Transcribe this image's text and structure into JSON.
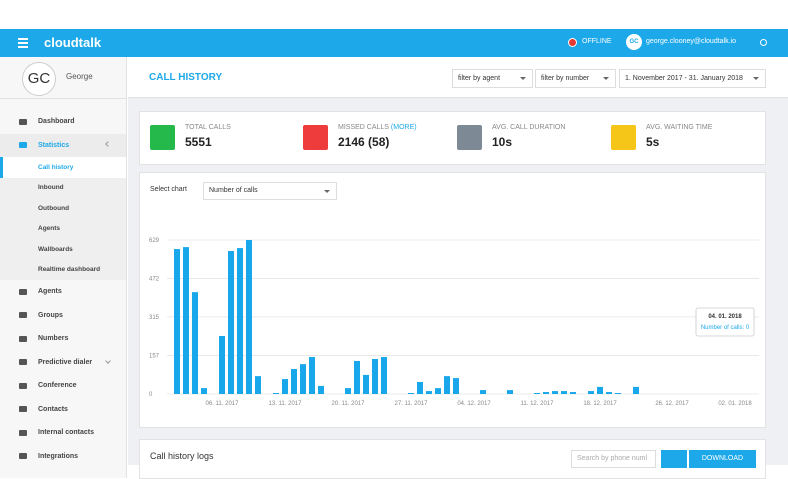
{
  "topbar": {
    "logo": "cloudtalk",
    "status": "OFFLINE",
    "user_initials": "GC",
    "user_email": "george.clooney@cloudtalk.io"
  },
  "sidebar": {
    "initials": "GC",
    "name": "George",
    "menu": [
      {
        "label": "Dashboard",
        "sub": false
      },
      {
        "label": "Statistics",
        "sub": false,
        "open": true
      },
      {
        "label": "Call history",
        "sub": true,
        "active": true
      },
      {
        "label": "Inbound",
        "sub": true
      },
      {
        "label": "Outbound",
        "sub": true
      },
      {
        "label": "Agents",
        "sub": true
      },
      {
        "label": "Wallboards",
        "sub": true
      },
      {
        "label": "Realtime dashboard",
        "sub": true
      },
      {
        "label": "Agents",
        "sub": false
      },
      {
        "label": "Groups",
        "sub": false
      },
      {
        "label": "Numbers",
        "sub": false
      },
      {
        "label": "Predictive dialer",
        "sub": false,
        "expandable": true
      },
      {
        "label": "Conference",
        "sub": false
      },
      {
        "label": "Contacts",
        "sub": false
      },
      {
        "label": "Internal contacts",
        "sub": false
      },
      {
        "label": "Integrations",
        "sub": false
      }
    ]
  },
  "header": {
    "title": "CALL HISTORY",
    "filters": [
      "filter by agent",
      "filter by number",
      "1. November 2017 - 31. January 2018"
    ]
  },
  "stats": [
    {
      "label": "TOTAL CALLS",
      "value": "5551",
      "color": "#25b84a"
    },
    {
      "label": "MISSED CALLS",
      "link": "(MORE)",
      "value": "2146 (58)",
      "color": "#ee3b3b"
    },
    {
      "label": "AVG. CALL DURATION",
      "value": "10s",
      "color": "#7d8a96"
    },
    {
      "label": "AVG. WAITING TIME",
      "value": "5s",
      "color": "#f5c518"
    }
  ],
  "chart_controls": {
    "label": "Select chart",
    "selected": "Number of calls"
  },
  "chart_data": {
    "type": "bar",
    "color": "#18a7ea",
    "grid": true,
    "ylim": [
      0,
      629
    ],
    "yticks": [
      0,
      157,
      315,
      472,
      629
    ],
    "categories": [
      null,
      null,
      null,
      null,
      null,
      "06. 11. 2017",
      null,
      null,
      null,
      null,
      null,
      null,
      "13. 11. 2017",
      null,
      null,
      null,
      null,
      null,
      null,
      "20. 11. 2017",
      null,
      null,
      null,
      null,
      null,
      null,
      "27. 11. 2017",
      null,
      null,
      null,
      null,
      null,
      null,
      "04. 12. 2017",
      null,
      null,
      null,
      null,
      null,
      null,
      "11. 12. 2017",
      null,
      null,
      null,
      null,
      null,
      null,
      "18. 12. 2017",
      null,
      null,
      null,
      null,
      null,
      null,
      null,
      "26. 12. 2017",
      null,
      null,
      null,
      null,
      null,
      null,
      "02. 01. 2018",
      null,
      null
    ],
    "values": [
      592,
      600,
      416,
      24,
      0,
      237,
      584,
      596,
      629,
      73,
      0,
      4,
      61,
      102,
      122,
      151,
      33,
      0,
      0,
      24,
      135,
      78,
      143,
      151,
      0,
      0,
      4,
      49,
      12,
      24,
      73,
      65,
      0,
      0,
      16,
      0,
      0,
      16,
      0,
      0,
      4,
      8,
      12,
      12,
      8,
      0,
      12,
      29,
      8,
      4,
      0,
      29,
      0,
      0,
      0,
      0,
      0,
      0,
      0,
      0,
      0,
      0,
      0,
      0,
      0
    ],
    "tooltip": {
      "title": "04. 01. 2018",
      "text": "Number of calls: 0"
    }
  },
  "logs": {
    "title": "Call history logs",
    "search_placeholder": "Search by phone numl",
    "download": "DOWNLOAD"
  }
}
